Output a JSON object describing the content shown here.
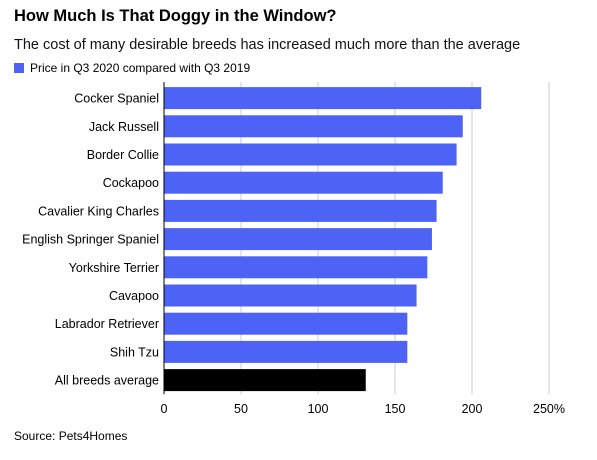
{
  "title": "How Much Is That Doggy in the Window?",
  "subtitle": "The cost of many desirable breeds has increased much more than the average",
  "source": "Source: Pets4Homes",
  "colors": {
    "highlight": "#4d63f5",
    "average": "#000000",
    "axis": "#cccccc"
  },
  "chart_data": {
    "type": "bar",
    "orientation": "horizontal",
    "legend": [
      {
        "label": "Price in Q3 2020 compared with Q3 2019",
        "color": "#4d63f5"
      }
    ],
    "legend_position": "top-left",
    "categories": [
      "Cocker Spaniel",
      "Jack Russell",
      "Border Collie",
      "Cockapoo",
      "Cavalier King Charles",
      "English Springer Spaniel",
      "Yorkshire Terrier",
      "Cavapoo",
      "Labrador Retriever",
      "Shih Tzu",
      "All breeds average"
    ],
    "values": [
      206,
      194,
      190,
      181,
      177,
      174,
      171,
      164,
      158,
      158,
      131
    ],
    "bar_colors": [
      "#4d63f5",
      "#4d63f5",
      "#4d63f5",
      "#4d63f5",
      "#4d63f5",
      "#4d63f5",
      "#4d63f5",
      "#4d63f5",
      "#4d63f5",
      "#4d63f5",
      "#000000"
    ],
    "xlim": [
      0,
      250
    ],
    "xticks": [
      0,
      50,
      100,
      150,
      200,
      250
    ],
    "xtick_labels": [
      "0",
      "50",
      "100",
      "150",
      "200",
      "250%"
    ],
    "grid": true
  }
}
